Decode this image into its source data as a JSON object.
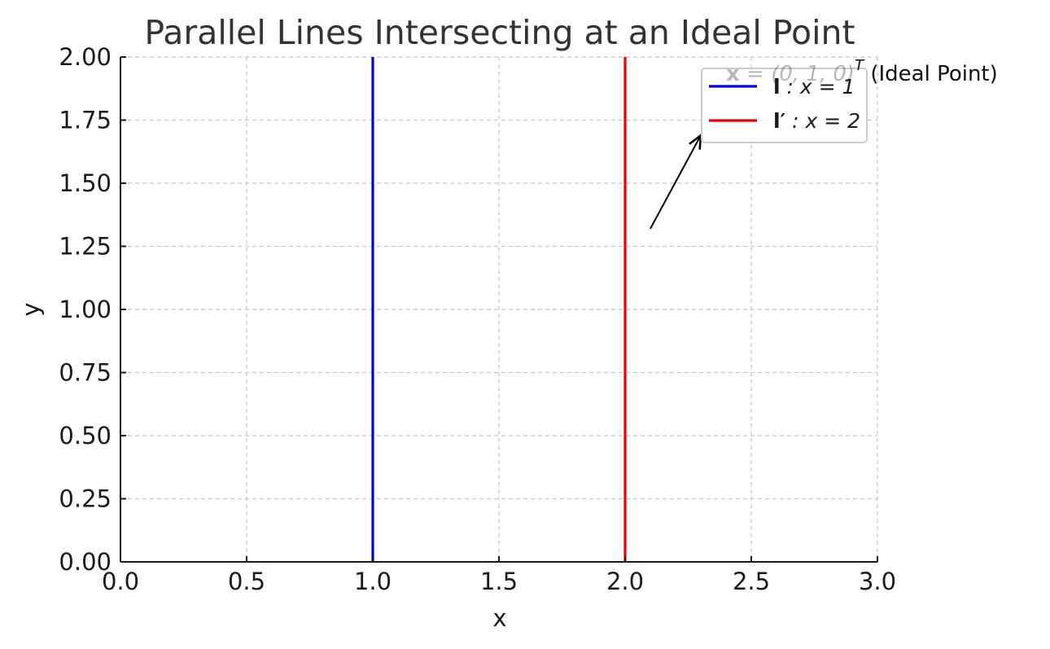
{
  "chart_data": {
    "type": "line",
    "title": "Parallel Lines Intersecting at an Ideal Point",
    "xlabel": "x",
    "ylabel": "y",
    "xlim": [
      0,
      3
    ],
    "ylim": [
      0,
      2
    ],
    "xticks": [
      "0.0",
      "0.5",
      "1.0",
      "1.5",
      "2.0",
      "2.5",
      "3.0"
    ],
    "yticks": [
      "0.00",
      "0.25",
      "0.50",
      "0.75",
      "1.00",
      "1.25",
      "1.50",
      "1.75",
      "2.00"
    ],
    "grid": true,
    "legend_position": "top-right",
    "series": [
      {
        "name": "l : x = 1",
        "legend_bold": "l",
        "legend_rest": " : x = 1",
        "color": "#0000dd",
        "x": [
          1,
          1
        ],
        "y": [
          0,
          2
        ]
      },
      {
        "name": "l′ : x = 2",
        "legend_bold": "l′",
        "legend_rest": " : x = 2",
        "color": "#ee0000",
        "x": [
          2,
          2
        ],
        "y": [
          0,
          2
        ]
      }
    ],
    "annotation": {
      "bold": "x",
      "math": " = (0, 1, 0)",
      "sup": "T",
      "rest": " (Ideal Point)",
      "arrow_from": [
        2.1,
        1.32
      ],
      "arrow_to": [
        2.3,
        1.69
      ]
    }
  }
}
